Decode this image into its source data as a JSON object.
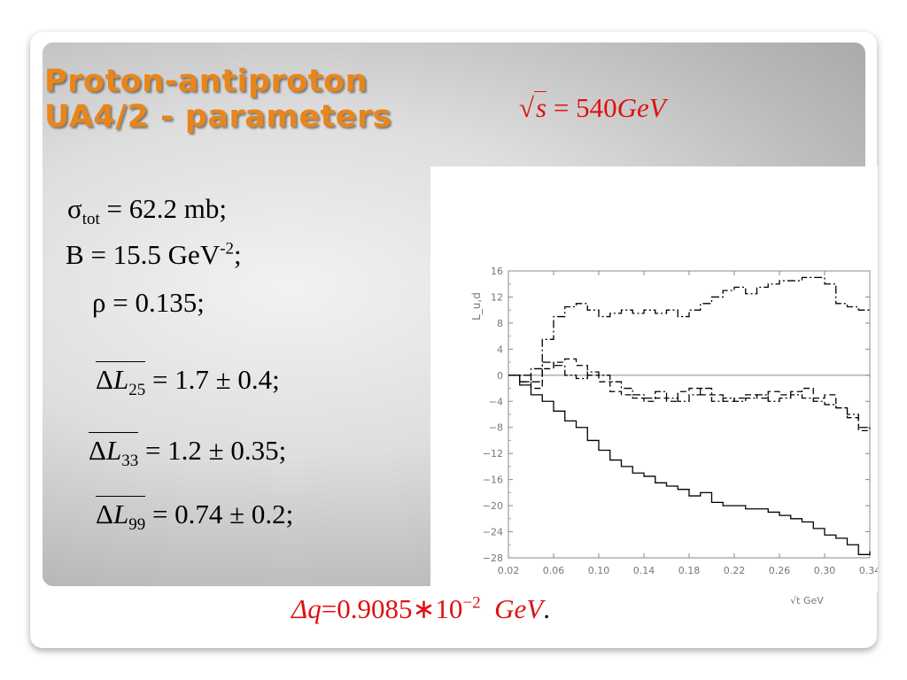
{
  "slide": {
    "title_line1": "Proton-antiproton",
    "title_line2": "UA4/2 - parameters",
    "energy": {
      "sqrt_arg": "s",
      "equals": "=",
      "value": "540",
      "unit": "GeV"
    },
    "parameters": {
      "sigma": {
        "symbol": "σ",
        "sub": "tot",
        "text": " =  62.2 mb;"
      },
      "B": {
        "symbol": "B",
        "text": "  = 15.5 GeV",
        "sup": "-2",
        "tail": ";"
      },
      "rho": {
        "symbol": "ρ",
        "text": " =  0.135;"
      },
      "dL25": {
        "delta": "Δ",
        "L": "L",
        "sub": "25",
        "text": " = 1.7 ± 0.4;"
      },
      "dL33": {
        "delta": "Δ",
        "L": "L",
        "sub": "33",
        "text": " = 1.2 ± 0.35;"
      },
      "dL99": {
        "delta": "Δ",
        "L": "L",
        "sub": "99",
        "text": " = 0.74 ± 0.2;"
      }
    },
    "delta_q": {
      "lhs": "Δq",
      "eq": "=",
      "mantissa": "0.9085",
      "times": "∗",
      "base": "10",
      "exp": "−2",
      "unit": "GeV",
      "period": "."
    }
  },
  "chart_data": {
    "type": "line",
    "title": "",
    "xlabel": "√t GeV",
    "ylabel": "L_u,d",
    "xlim": [
      0.02,
      0.34
    ],
    "ylim": [
      -28,
      16
    ],
    "x_ticks": [
      "0.02",
      "0.06",
      "0.10",
      "0.14",
      "0.18",
      "0.22",
      "0.26",
      "0.30",
      "0.34"
    ],
    "y_ticks": [
      "16",
      "12",
      "8",
      "4",
      "0",
      "-4",
      "-8",
      "-12",
      "-16",
      "-20",
      "-24",
      "-28"
    ],
    "grid": false,
    "reference_line": 0,
    "series": [
      {
        "style": "solid",
        "color": "#000000",
        "x": [
          0.02,
          0.03,
          0.04,
          0.05,
          0.06,
          0.07,
          0.08,
          0.09,
          0.1,
          0.11,
          0.12,
          0.13,
          0.14,
          0.15,
          0.16,
          0.17,
          0.18,
          0.19,
          0.2,
          0.21,
          0.22,
          0.23,
          0.24,
          0.25,
          0.26,
          0.27,
          0.28,
          0.29,
          0.3,
          0.31,
          0.32,
          0.33,
          0.34
        ],
        "y": [
          0,
          -1.5,
          -3,
          -4,
          -5.5,
          -7,
          -8,
          -10,
          -11.5,
          -13,
          -14,
          -15,
          -15.5,
          -16.5,
          -17,
          -17.5,
          -18.5,
          -18,
          -19.5,
          -20,
          -20,
          -20.5,
          -20.5,
          -21,
          -21.5,
          -22,
          -22.5,
          -23.5,
          -24.5,
          -25,
          -26,
          -27.5,
          -27
        ]
      },
      {
        "style": "dash-dot",
        "color": "#000000",
        "x": [
          0.02,
          0.03,
          0.04,
          0.05,
          0.06,
          0.07,
          0.08,
          0.09,
          0.1,
          0.11,
          0.12,
          0.13,
          0.14,
          0.15,
          0.16,
          0.17,
          0.18,
          0.19,
          0.2,
          0.21,
          0.22,
          0.23,
          0.24,
          0.25,
          0.26,
          0.27,
          0.28,
          0.29,
          0.3,
          0.31,
          0.32,
          0.33,
          0.34
        ],
        "y": [
          0,
          -1,
          1,
          5.5,
          9,
          10.5,
          11,
          10,
          9,
          9.5,
          10,
          9.5,
          10,
          9.5,
          10,
          9,
          10,
          11,
          12,
          13,
          13.5,
          12.5,
          13.5,
          14,
          14.5,
          14.5,
          15,
          15,
          14,
          11,
          10.5,
          10,
          10
        ]
      },
      {
        "style": "dashed",
        "color": "#000000",
        "x": [
          0.02,
          0.03,
          0.04,
          0.05,
          0.06,
          0.07,
          0.08,
          0.09,
          0.1,
          0.11,
          0.12,
          0.13,
          0.14,
          0.15,
          0.16,
          0.17,
          0.18,
          0.19,
          0.2,
          0.21,
          0.22,
          0.23,
          0.24,
          0.25,
          0.26,
          0.27,
          0.28,
          0.29,
          0.3,
          0.31,
          0.32,
          0.33,
          0.34
        ],
        "y": [
          0,
          -1,
          -2,
          1,
          2,
          2.5,
          1.5,
          0,
          -1,
          -2.5,
          -3,
          -3.5,
          -4,
          -3.5,
          -4,
          -2.5,
          -2,
          -3,
          -3,
          -4,
          -3.5,
          -3,
          -3.5,
          -2.5,
          -3,
          -2.5,
          -2,
          -3.5,
          -3,
          -5,
          -6.5,
          -8.5,
          -8
        ]
      },
      {
        "style": "dash-dot",
        "color": "#000000",
        "x": [
          0.02,
          0.03,
          0.04,
          0.05,
          0.06,
          0.07,
          0.08,
          0.09,
          0.1,
          0.11,
          0.12,
          0.13,
          0.14,
          0.15,
          0.16,
          0.17,
          0.18,
          0.19,
          0.2,
          0.21,
          0.22,
          0.23,
          0.24,
          0.25,
          0.26,
          0.27,
          0.28,
          0.29,
          0.3,
          0.31,
          0.32,
          0.33,
          0.34
        ],
        "y": [
          0,
          0,
          -1,
          2,
          1.5,
          0,
          -0.5,
          0.5,
          0,
          -1,
          -2,
          -3,
          -3.5,
          -2.5,
          -3.5,
          -4,
          -3,
          -2,
          -4,
          -3.5,
          -4,
          -3.5,
          -3,
          -4,
          -3.5,
          -3,
          -3.5,
          -4,
          -4.5,
          -5,
          -6,
          -8,
          -8
        ]
      }
    ]
  },
  "colors": {
    "title": "#e8851b",
    "accent_red": "#e01010",
    "panel": "#c8c8c8"
  }
}
